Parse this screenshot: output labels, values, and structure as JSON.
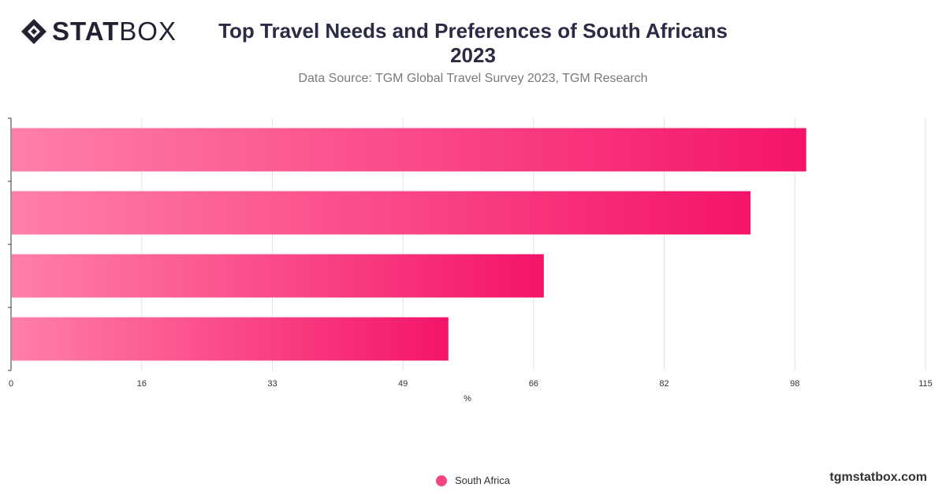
{
  "logo": {
    "bold_text": "STAT",
    "light_text": "BOX"
  },
  "header": {
    "title_line1": "Top Travel Needs and Preferences of South Africans",
    "title_line2": "2023",
    "subtitle": "Data Source: TGM Global Travel Survey 2023, TGM Research"
  },
  "colors": {
    "bar_start": "#ff7fa8",
    "bar_end": "#f5146a",
    "legend_dot": "#f0457f",
    "grid": "#e2e2e2",
    "axis": "#333333",
    "text": "#333333"
  },
  "chart_data": {
    "type": "bar",
    "orientation": "horizontal",
    "categories": [
      "",
      "",
      "",
      ""
    ],
    "series": [
      {
        "name": "South Africa",
        "values": [
          100,
          93,
          67,
          55
        ]
      }
    ],
    "xlabel": "%",
    "xlim": [
      0,
      115
    ],
    "xticks": [
      "0",
      "16",
      "33",
      "49",
      "66",
      "82",
      "98",
      "115"
    ],
    "xtick_values": [
      0,
      16.43,
      32.86,
      49.29,
      65.71,
      82.14,
      98.57,
      115
    ],
    "grid": true,
    "legend_position": "bottom"
  },
  "legend": {
    "label": "South Africa"
  },
  "watermark": "tgmstatbox.com"
}
